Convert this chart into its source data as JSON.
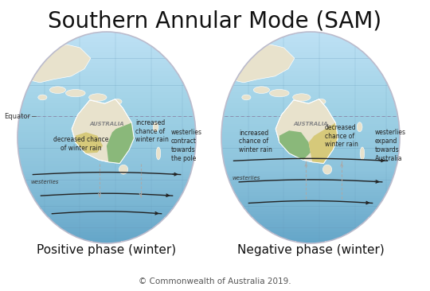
{
  "title": "Southern Annular Mode (SAM)",
  "title_fontsize": 20,
  "background_color": "#ffffff",
  "subtitle_left": "Positive phase (winter)",
  "subtitle_right": "Negative phase (winter)",
  "subtitle_fontsize": 11,
  "copyright": "© Commonwealth of Australia 2019.",
  "copyright_fontsize": 7.5,
  "equator_label": "Equator",
  "ocean_color_top": "#a8d8ea",
  "ocean_color_mid": "#7bbdd4",
  "ocean_color_bot": "#5a9fc0",
  "land_color": "#e8e2cc",
  "green_color": "#8ab87a",
  "yellow_color": "#d6c97a",
  "wind_arrow_color": "#222222",
  "dashed_arrow_color": "#aaaaaa",
  "westerlies_text_color": "#444444",
  "annotation_color": "#222222",
  "globe_border_color": "#cccccc",
  "equator_line_color": "#9999aa",
  "grid_line_color": "#6699bb"
}
